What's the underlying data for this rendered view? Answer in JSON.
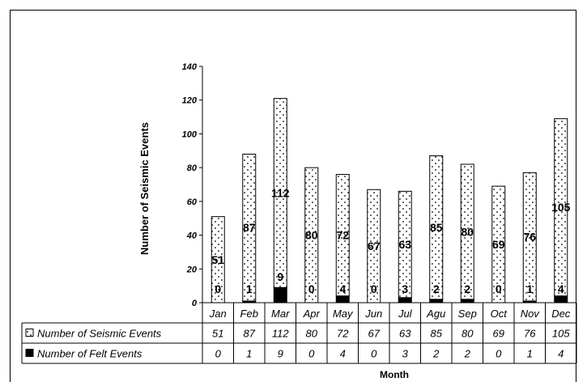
{
  "chart_data": {
    "type": "bar",
    "stacked": true,
    "title": "",
    "xlabel": "Month",
    "ylabel": "Number of Seismic Events",
    "ylim": [
      0,
      140
    ],
    "yticks": [
      "0",
      "20",
      "40",
      "60",
      "80",
      "100",
      "120",
      "140"
    ],
    "grid": false,
    "categories": [
      "Jan",
      "Feb",
      "Mar",
      "Apr",
      "May",
      "Jun",
      "Jul",
      "Agu",
      "Sep",
      "Oct",
      "Nov",
      "Dec"
    ],
    "series": [
      {
        "name": "Number of Felt Events",
        "values": [
          0,
          1,
          9,
          0,
          4,
          0,
          3,
          2,
          2,
          0,
          1,
          4
        ],
        "color": "#000000",
        "pattern": "solid"
      },
      {
        "name": "Number of Seismic Events",
        "values": [
          51,
          87,
          112,
          80,
          72,
          67,
          63,
          85,
          80,
          69,
          76,
          105
        ],
        "color": "#ffffff",
        "pattern": "dotted"
      }
    ],
    "data_table": {
      "rows": [
        {
          "legend": "Number of Seismic Events",
          "values": [
            "51",
            "87",
            "112",
            "80",
            "72",
            "67",
            "63",
            "85",
            "80",
            "69",
            "76",
            "105"
          ]
        },
        {
          "legend": "Number of Felt Events",
          "values": [
            "0",
            "1",
            "9",
            "0",
            "4",
            "0",
            "3",
            "2",
            "2",
            "0",
            "1",
            "4"
          ]
        }
      ]
    }
  }
}
